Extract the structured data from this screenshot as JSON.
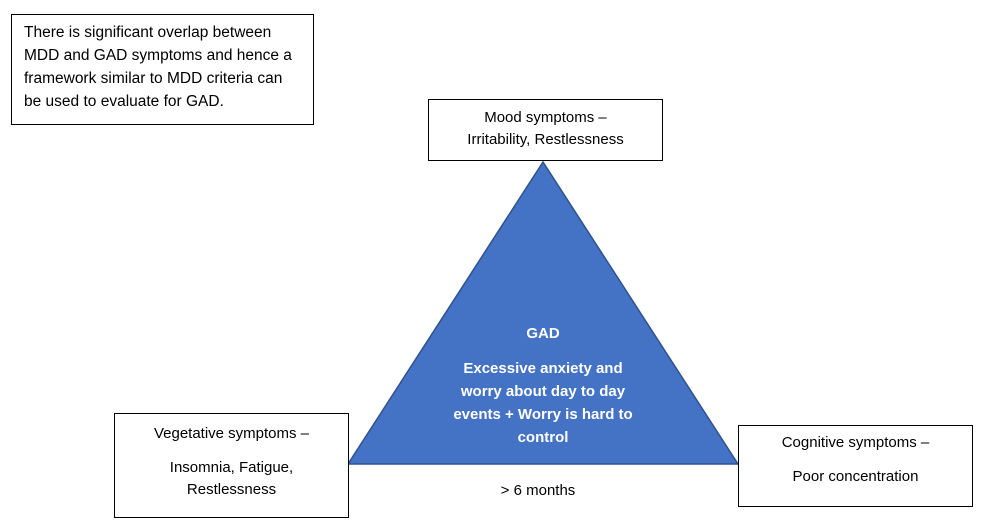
{
  "note": {
    "text": "There is significant overlap between MDD and GAD symptoms and hence a framework similar to MDD criteria can be used to evaluate for GAD."
  },
  "mood": {
    "title": "Mood symptoms –",
    "items": "Irritability, Restlessness"
  },
  "vegetative": {
    "title": "Vegetative symptoms –",
    "items_line1": "Insomnia, Fatigue,",
    "items_line2": "Restlessness"
  },
  "cognitive": {
    "title": "Cognitive symptoms –",
    "items": "Poor concentration"
  },
  "center": {
    "title": "GAD",
    "description": "Excessive anxiety and worry about day to day events + Worry is hard to control",
    "fill_color": "#4472C4"
  },
  "duration": {
    "text": "> 6 months"
  }
}
